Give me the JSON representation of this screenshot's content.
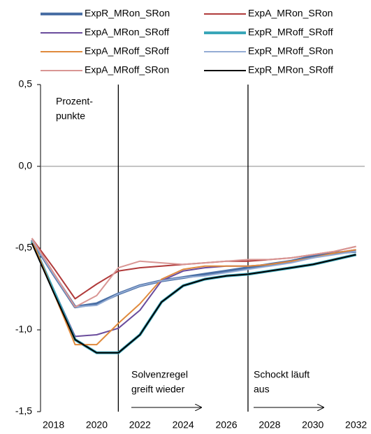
{
  "chart_data": {
    "type": "line",
    "x": [
      2017,
      2018,
      2019,
      2020,
      2021,
      2022,
      2023,
      2024,
      2025,
      2026,
      2027,
      2028,
      2029,
      2030,
      2031,
      2032
    ],
    "xlim": [
      2017.4,
      2032.4
    ],
    "xticks": [
      2018,
      2020,
      2022,
      2024,
      2026,
      2028,
      2030,
      2032
    ],
    "ylim": [
      -1.5,
      0.5
    ],
    "yticks": [
      {
        "value": -1.5,
        "label": "-1,5"
      },
      {
        "value": -1.0,
        "label": "-1,0"
      },
      {
        "value": -0.5,
        "label": "-0,5"
      },
      {
        "value": 0.0,
        "label": "0,0"
      },
      {
        "value": 0.5,
        "label": "0,5"
      }
    ],
    "zero_line": true,
    "vlines": [
      2021,
      2027
    ],
    "annotations": [
      {
        "lines": [
          "Prozent-",
          "punkte"
        ]
      },
      {
        "lines": [
          "Solvenzregel",
          "greift wieder"
        ]
      },
      {
        "lines": [
          "Schockt läuft",
          "aus"
        ]
      }
    ],
    "series": [
      {
        "name": "ExpR_MRon_SRon",
        "color": "#4a6fa5",
        "width": 4,
        "values": [
          -0.45,
          -0.66,
          -0.86,
          -0.84,
          -0.78,
          -0.73,
          -0.7,
          -0.68,
          -0.66,
          -0.64,
          -0.62,
          -0.6,
          -0.58,
          -0.55,
          -0.53,
          -0.52
        ]
      },
      {
        "name": "ExpA_MRon_SRon",
        "color": "#b03a3a",
        "width": 2,
        "values": [
          -0.44,
          -0.62,
          -0.81,
          -0.72,
          -0.64,
          -0.62,
          -0.61,
          -0.6,
          -0.59,
          -0.58,
          -0.58,
          -0.57,
          -0.56,
          -0.54,
          -0.52,
          -0.49
        ]
      },
      {
        "name": "ExpA_MRon_SRoff",
        "color": "#6a4c9c",
        "width": 2,
        "values": [
          -0.45,
          -0.75,
          -1.04,
          -1.03,
          -0.99,
          -0.88,
          -0.7,
          -0.64,
          -0.62,
          -0.61,
          -0.61,
          -0.6,
          -0.58,
          -0.56,
          -0.53,
          -0.51
        ]
      },
      {
        "name": "ExpR_MRoff_SRoff",
        "color": "#3aa6b9",
        "width": 4,
        "values": [
          -0.46,
          -0.76,
          -1.06,
          -1.14,
          -1.14,
          -1.03,
          -0.83,
          -0.73,
          -0.69,
          -0.67,
          -0.66,
          -0.64,
          -0.62,
          -0.6,
          -0.57,
          -0.54
        ]
      },
      {
        "name": "ExpA_MRoff_SRoff",
        "color": "#e08a3c",
        "width": 2,
        "values": [
          -0.45,
          -0.77,
          -1.09,
          -1.09,
          -0.96,
          -0.84,
          -0.69,
          -0.63,
          -0.61,
          -0.61,
          -0.61,
          -0.6,
          -0.58,
          -0.56,
          -0.53,
          -0.51
        ]
      },
      {
        "name": "ExpR_MRoff_SRon",
        "color": "#94acd4",
        "width": 2,
        "values": [
          -0.45,
          -0.66,
          -0.86,
          -0.85,
          -0.78,
          -0.73,
          -0.7,
          -0.68,
          -0.67,
          -0.65,
          -0.63,
          -0.61,
          -0.59,
          -0.56,
          -0.54,
          -0.52
        ]
      },
      {
        "name": "ExpA_MRoff_SRon",
        "color": "#d99694",
        "width": 2,
        "values": [
          -0.44,
          -0.65,
          -0.86,
          -0.79,
          -0.62,
          -0.58,
          -0.59,
          -0.6,
          -0.59,
          -0.58,
          -0.57,
          -0.57,
          -0.56,
          -0.54,
          -0.52,
          -0.49
        ]
      },
      {
        "name": "ExpR_MRon_SRoff",
        "color": "#000000",
        "width": 2,
        "values": [
          -0.47,
          -0.77,
          -1.06,
          -1.14,
          -1.14,
          -1.03,
          -0.83,
          -0.73,
          -0.69,
          -0.67,
          -0.66,
          -0.64,
          -0.62,
          -0.6,
          -0.57,
          -0.54
        ]
      }
    ]
  }
}
